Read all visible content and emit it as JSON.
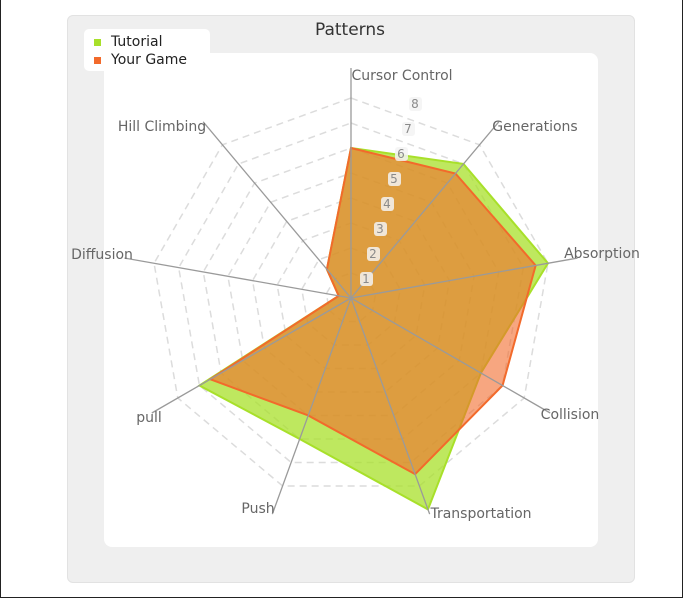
{
  "chart_data": {
    "type": "radar",
    "title": "Patterns",
    "axes": [
      "Cursor Control",
      "Generations",
      "Absorption",
      "Collision",
      "Transportation",
      "Push",
      "pull",
      "Diffusion",
      "Hill Climbing"
    ],
    "r_ticks": [
      "1",
      "2",
      "3",
      "4",
      "5",
      "6",
      "7",
      "8"
    ],
    "r_max": 8,
    "grid": true,
    "legend_position": "top-left",
    "series": [
      {
        "name": "Tutorial",
        "color": "#a8e02a",
        "values": [
          6,
          7,
          8,
          6,
          9,
          6,
          7,
          0.5,
          1.5
        ]
      },
      {
        "name": "Your Game",
        "color": "#f26a2b",
        "values": [
          6,
          6.5,
          7.5,
          7,
          7.5,
          5,
          6.5,
          0.5,
          1.5
        ]
      }
    ]
  }
}
